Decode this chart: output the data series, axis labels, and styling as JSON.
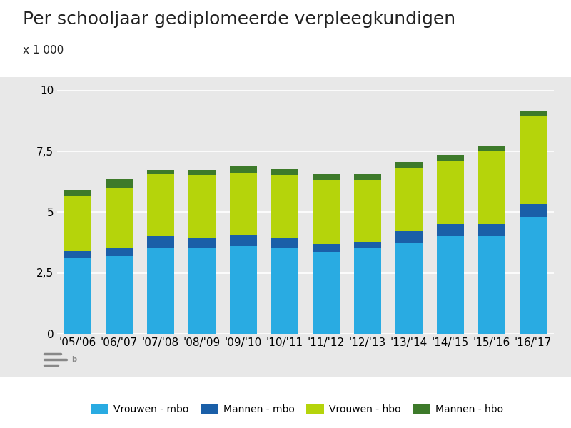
{
  "title": "Per schooljaar gediplomeerde verpleegkundigen",
  "ylabel": "x 1 000",
  "categories": [
    "'05/'06",
    "'06/'07",
    "'07/'08",
    "'08/'09",
    "'09/'10",
    "'10/'11",
    "'11/'12",
    "'12/'13",
    "'13/'14",
    "'14/'15",
    "'15/'16",
    "'16/'17"
  ],
  "vrouwen_mbo": [
    3.1,
    3.2,
    3.55,
    3.55,
    3.6,
    3.5,
    3.35,
    3.5,
    3.75,
    4.0,
    4.0,
    4.8
  ],
  "mannen_mbo": [
    0.28,
    0.35,
    0.45,
    0.4,
    0.43,
    0.43,
    0.34,
    0.28,
    0.45,
    0.5,
    0.5,
    0.52
  ],
  "vrouwen_hbo": [
    2.25,
    2.45,
    2.55,
    2.55,
    2.58,
    2.55,
    2.6,
    2.55,
    2.62,
    2.58,
    2.98,
    3.6
  ],
  "mannen_hbo": [
    0.28,
    0.35,
    0.18,
    0.23,
    0.27,
    0.27,
    0.25,
    0.22,
    0.22,
    0.25,
    0.22,
    0.22
  ],
  "color_vrouwen_mbo": "#29abe2",
  "color_mannen_mbo": "#1a5fa8",
  "color_vrouwen_hbo": "#b5d40b",
  "color_mannen_hbo": "#3d7a2a",
  "ylim": [
    0,
    10
  ],
  "yticks": [
    0,
    2.5,
    5.0,
    7.5,
    10.0
  ],
  "ytick_labels": [
    "0",
    "2,5",
    "5",
    "7,5",
    "10"
  ],
  "legend_labels": [
    "Vrouwen - mbo",
    "Mannen - mbo",
    "Vrouwen - hbo",
    "Mannen - hbo"
  ],
  "bg_color_plot": "#e8e8e8",
  "bg_color_fig": "#ffffff",
  "title_fontsize": 18,
  "axis_fontsize": 11,
  "bar_width": 0.65
}
